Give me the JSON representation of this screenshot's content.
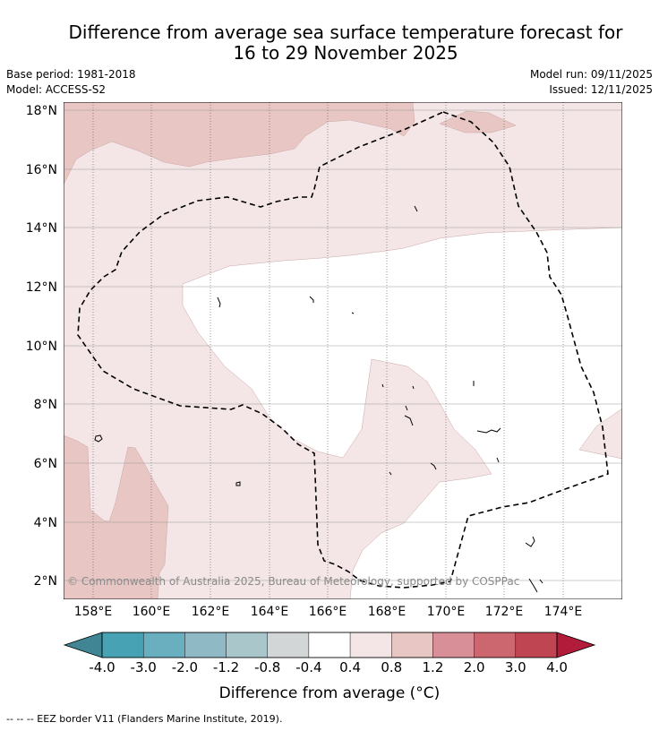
{
  "header": {
    "title_line1": "Difference from average sea surface temperature forecast for",
    "title_line2": "16 to 29 November 2025",
    "base_period": "Base period: 1981-2018",
    "model": "Model: ACCESS-S2",
    "model_run": "Model run: 09/11/2025",
    "issued": "Issued: 12/11/2025"
  },
  "map": {
    "lat_labels": [
      "18°N",
      "16°N",
      "14°N",
      "12°N",
      "10°N",
      "8°N",
      "6°N",
      "4°N",
      "2°N"
    ],
    "lon_labels": [
      "158°E",
      "160°E",
      "162°E",
      "164°E",
      "166°E",
      "168°E",
      "170°E",
      "172°E",
      "174°E"
    ],
    "copyright": "© Commonwealth of Australia 2025, Bureau of Meteorology, supported by COSPPac"
  },
  "colorbar": {
    "ticks": [
      "-4.0",
      "-3.0",
      "-2.0",
      "-1.2",
      "-0.8",
      "-0.4",
      "0.4",
      "0.8",
      "1.2",
      "2.0",
      "3.0",
      "4.0"
    ],
    "colors": [
      "#3f8593",
      "#47a2b4",
      "#6aafc0",
      "#8fbac5",
      "#a9c6cb",
      "#d3d6d7",
      "#ffffff",
      "#f4e6e6",
      "#e8c6c3",
      "#d98f97",
      "#cc6770",
      "#c04553",
      "#b31b3b"
    ],
    "title": "Difference from average (°C)"
  },
  "footer": {
    "legend": "--  --  -- EEZ border V11 (Flanders Marine Institute, 2019)."
  }
}
